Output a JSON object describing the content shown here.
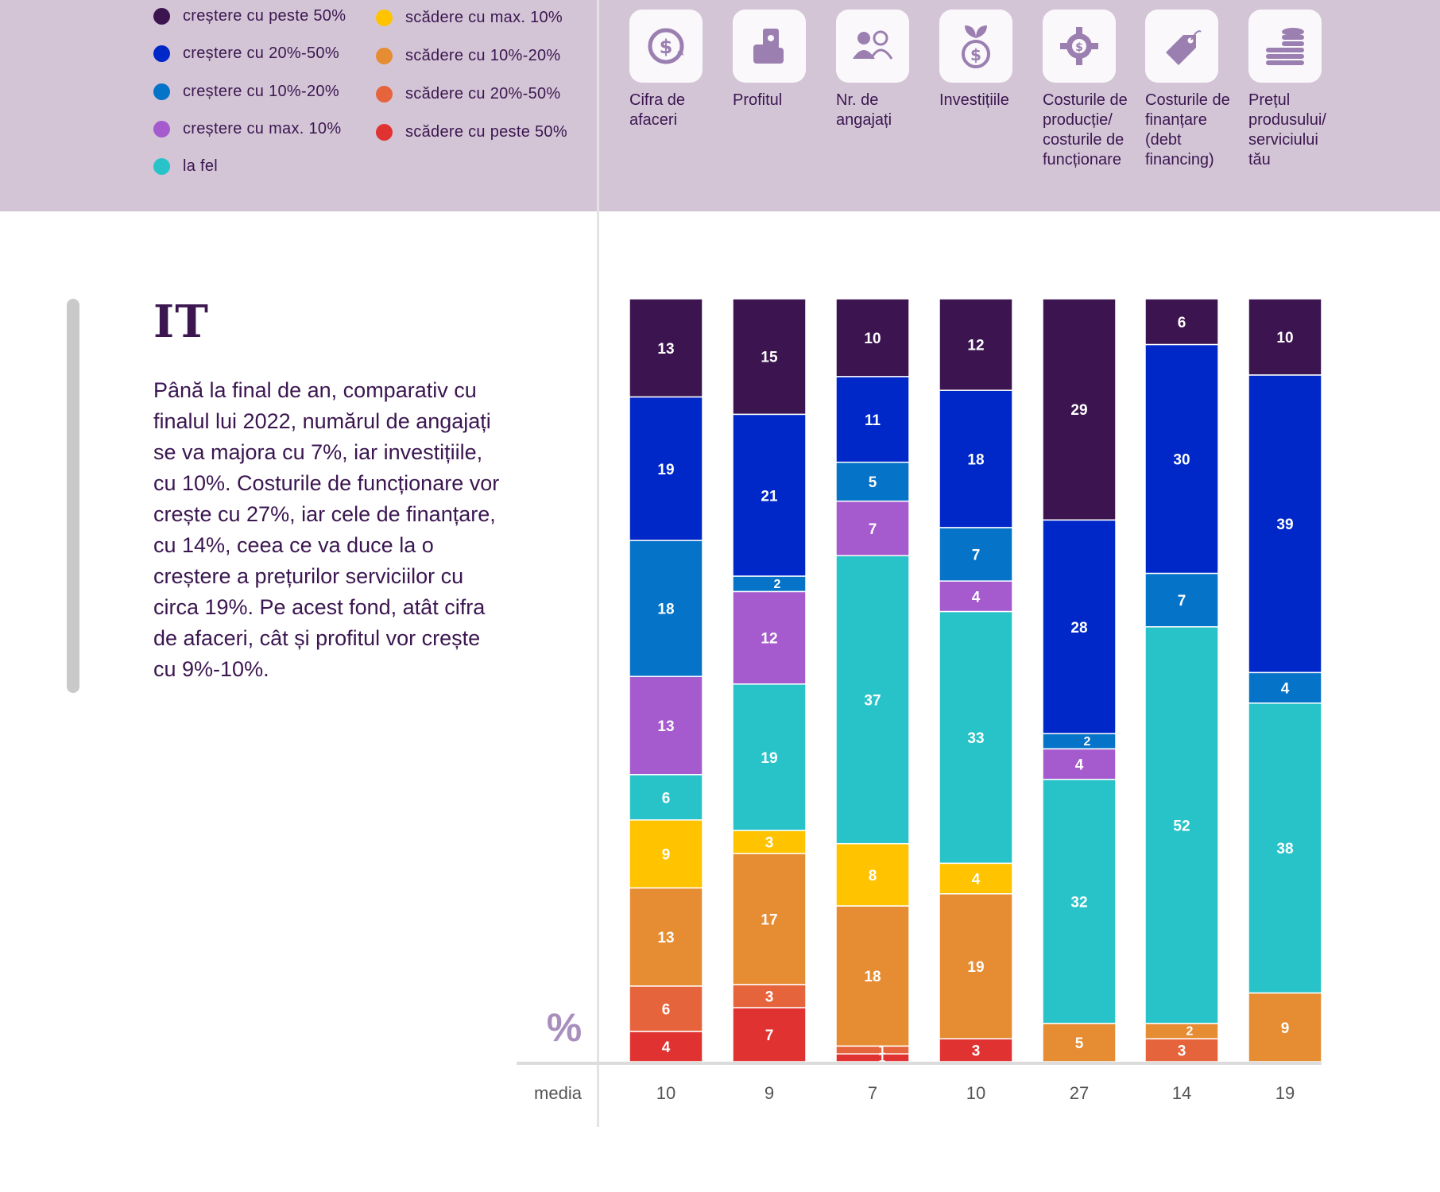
{
  "legend": [
    {
      "label": "creștere cu peste 50%",
      "color": "#3b1450"
    },
    {
      "label": "creștere cu 20%-50%",
      "color": "#0028c8"
    },
    {
      "label": "creștere cu 10%-20%",
      "color": "#0573c8"
    },
    {
      "label": "creștere cu max. 10%",
      "color": "#a55acd"
    },
    {
      "label": "la fel",
      "color": "#28c3c8"
    },
    {
      "label": "scădere cu max. 10%",
      "color": "#ffc300"
    },
    {
      "label": "scădere cu 10%-20%",
      "color": "#e68c32"
    },
    {
      "label": "scădere cu 20%-50%",
      "color": "#e6643c"
    },
    {
      "label": "scădere cu peste 50%",
      "color": "#e13232"
    }
  ],
  "metrics": [
    {
      "label": "Cifra de\nafaceri",
      "icon": "revenue-icon"
    },
    {
      "label": "Profitul",
      "icon": "profit-icon"
    },
    {
      "label": "Nr. de\nangajați",
      "icon": "employees-icon"
    },
    {
      "label": "Investițiile",
      "icon": "investment-icon"
    },
    {
      "label": "Costurile de\nproducție/\ncosturile de\nfuncționare",
      "icon": "production-cost-icon"
    },
    {
      "label": "Costurile de\nfinanțare\n(debt\nfinancing)",
      "icon": "financing-tag-icon"
    },
    {
      "label": "Prețul\nprodusului/\nserviciului\ntău",
      "icon": "coins-stack-icon"
    }
  ],
  "section": {
    "title": "IT",
    "description": "Până la final de an, comparativ cu finalul lui 2022, numărul de angajați se va majora cu 7%, iar investițiile, cu 10%. Costurile de funcționare vor crește cu 27%, iar cele de finanțare, cu 14%, ceea ce va duce la o creștere a prețurilor serviciilor cu circa 19%. Pe acest fond, atât cifra de afaceri, cât și profitul vor crește cu 9%-10%."
  },
  "chart_data": {
    "type": "bar",
    "stacked": true,
    "unit_label": "%",
    "categories": [
      "Cifra de afaceri",
      "Profitul",
      "Nr. de angajați",
      "Investițiile",
      "Costurile de producție/costurile de funcționare",
      "Costurile de finanțare (debt financing)",
      "Prețul produsului/serviciului tău"
    ],
    "series": [
      {
        "name": "creștere cu peste 50%",
        "color": "#3b1450",
        "values": [
          13,
          15,
          10,
          12,
          29,
          6,
          10
        ]
      },
      {
        "name": "creștere cu 20%-50%",
        "color": "#0028c8",
        "values": [
          19,
          21,
          11,
          18,
          28,
          30,
          39
        ]
      },
      {
        "name": "creștere cu 10%-20%",
        "color": "#0573c8",
        "values": [
          18,
          2,
          5,
          7,
          2,
          7,
          4
        ]
      },
      {
        "name": "creștere cu max. 10%",
        "color": "#a55acd",
        "values": [
          13,
          12,
          7,
          4,
          4,
          0,
          0
        ]
      },
      {
        "name": "la fel",
        "color": "#28c3c8",
        "values": [
          6,
          19,
          37,
          33,
          32,
          52,
          38
        ]
      },
      {
        "name": "scădere cu max. 10%",
        "color": "#ffc300",
        "values": [
          9,
          3,
          8,
          4,
          0,
          0,
          0
        ]
      },
      {
        "name": "scădere cu 10%-20%",
        "color": "#e68c32",
        "values": [
          13,
          17,
          18,
          19,
          5,
          2,
          9
        ]
      },
      {
        "name": "scădere cu 20%-50%",
        "color": "#e6643c",
        "values": [
          6,
          3,
          1,
          0,
          0,
          3,
          0
        ]
      },
      {
        "name": "scădere cu peste 50%",
        "color": "#e13232",
        "values": [
          4,
          7,
          1,
          3,
          0,
          0,
          0
        ]
      }
    ],
    "media_label": "media",
    "media": [
      10,
      9,
      7,
      10,
      27,
      14,
      19
    ]
  }
}
